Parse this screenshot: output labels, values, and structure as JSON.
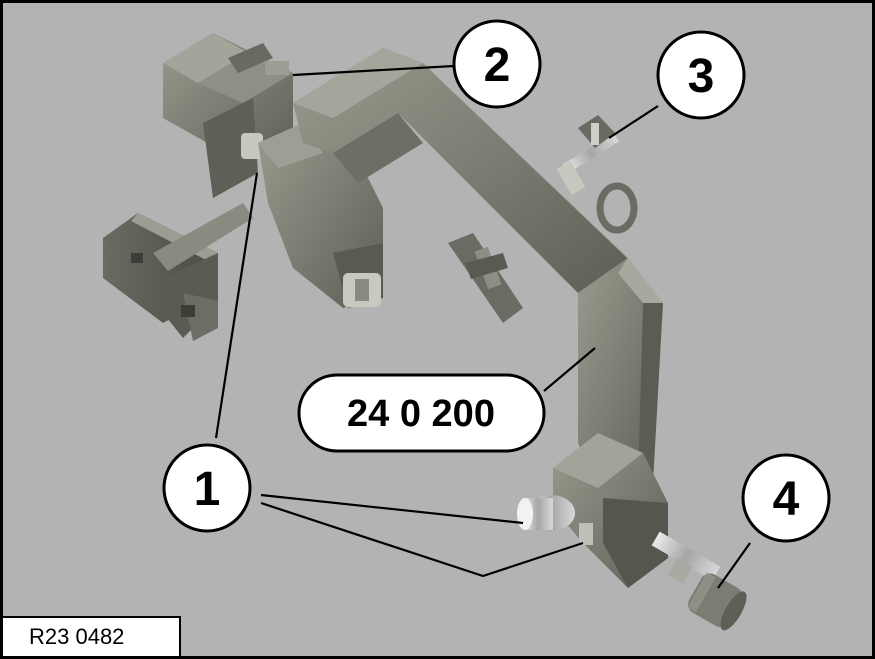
{
  "figure": {
    "reference_code": "R23 0482",
    "tool_number": "24 0 200",
    "callouts": {
      "one": "1",
      "two": "2",
      "three": "3",
      "four": "4"
    },
    "background_color": "#b3b3b3",
    "tool_color": "#7e7e74"
  }
}
